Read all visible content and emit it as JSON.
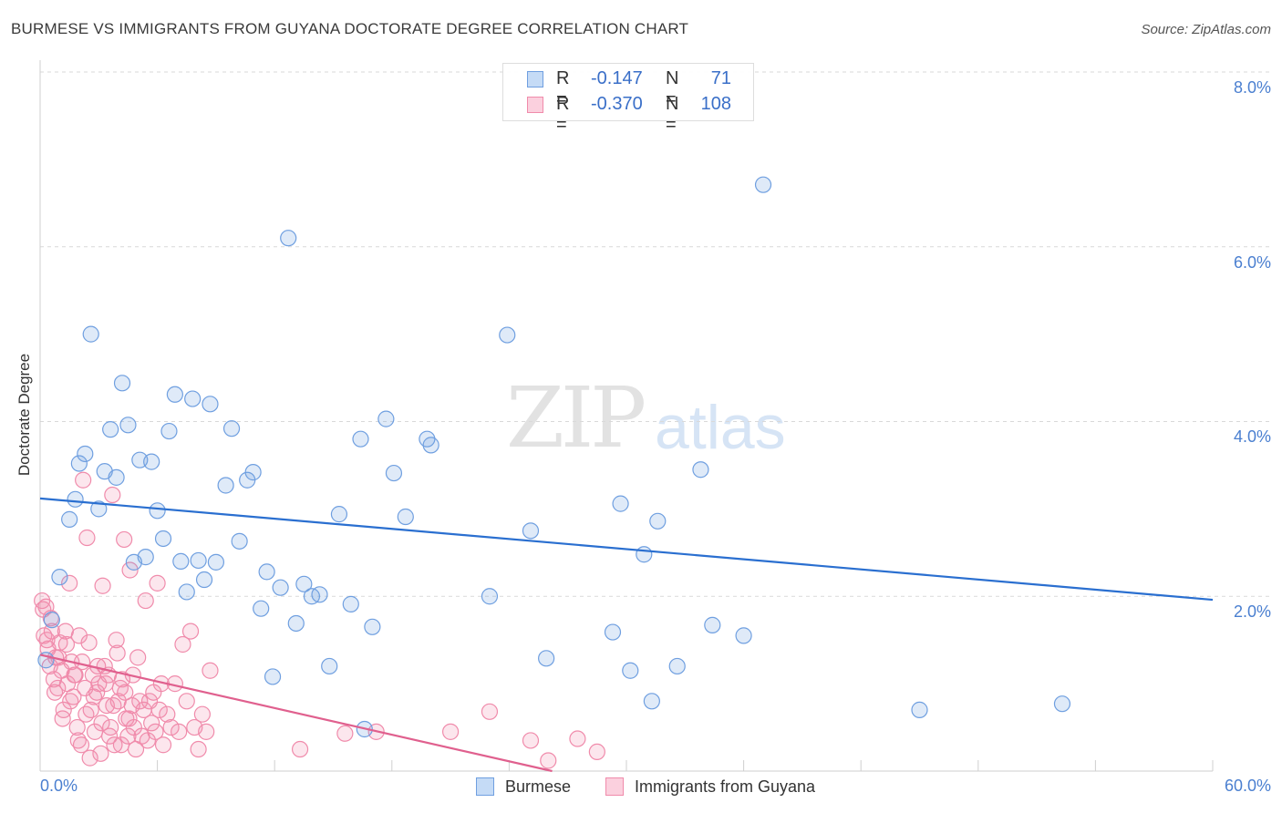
{
  "title": "BURMESE VS IMMIGRANTS FROM GUYANA DOCTORATE DEGREE CORRELATION CHART",
  "source": "Source: ZipAtlas.com",
  "watermark": {
    "zip": "ZIP",
    "atlas": "atlas"
  },
  "colors": {
    "blue": "#6f9fe0",
    "blue_line": "#2a6fd0",
    "pink": "#f08bab",
    "pink_line": "#e0608e",
    "grid": "#d9d9d9",
    "tick_text": "#4a7fd0"
  },
  "stats": {
    "blue": {
      "r_label": "R =",
      "r": "-0.147",
      "n_label": "N =",
      "n": "71"
    },
    "pink": {
      "r_label": "R =",
      "r": "-0.370",
      "n_label": "N =",
      "n": "108"
    }
  },
  "legend": {
    "blue": "Burmese",
    "pink": "Immigrants from Guyana"
  },
  "chart_data": {
    "type": "scatter",
    "title": "BURMESE VS IMMIGRANTS FROM GUYANA DOCTORATE DEGREE CORRELATION CHART",
    "xlabel": "",
    "ylabel": "Doctorate Degree",
    "xlim": [
      0,
      60
    ],
    "ylim": [
      0,
      8
    ],
    "x_tick_labels": [
      "0.0%",
      "60.0%"
    ],
    "y_ticks": [
      2,
      4,
      6,
      8
    ],
    "y_tick_labels": [
      "2.0%",
      "4.0%",
      "6.0%",
      "8.0%"
    ],
    "series": [
      {
        "name": "Burmese",
        "color": "#6f9fe0",
        "trend": {
          "x": [
            0,
            60
          ],
          "y": [
            3.12,
            1.96
          ]
        },
        "points": [
          [
            0.3,
            1.27
          ],
          [
            0.6,
            1.73
          ],
          [
            1.0,
            2.22
          ],
          [
            1.5,
            2.88
          ],
          [
            1.8,
            3.11
          ],
          [
            2.0,
            3.52
          ],
          [
            2.3,
            3.63
          ],
          [
            2.6,
            5.0
          ],
          [
            3.0,
            3.0
          ],
          [
            3.3,
            3.43
          ],
          [
            3.6,
            3.91
          ],
          [
            3.9,
            3.36
          ],
          [
            4.2,
            4.44
          ],
          [
            4.5,
            3.96
          ],
          [
            4.8,
            2.39
          ],
          [
            5.1,
            3.56
          ],
          [
            5.4,
            2.45
          ],
          [
            5.7,
            3.54
          ],
          [
            6.0,
            2.98
          ],
          [
            6.3,
            2.66
          ],
          [
            6.6,
            3.89
          ],
          [
            6.9,
            4.31
          ],
          [
            7.2,
            2.4
          ],
          [
            7.5,
            2.05
          ],
          [
            7.8,
            4.26
          ],
          [
            8.1,
            2.41
          ],
          [
            8.4,
            2.19
          ],
          [
            8.7,
            4.2
          ],
          [
            9.0,
            2.39
          ],
          [
            9.5,
            3.27
          ],
          [
            9.8,
            3.92
          ],
          [
            10.2,
            2.63
          ],
          [
            10.6,
            3.33
          ],
          [
            10.9,
            3.42
          ],
          [
            11.3,
            1.86
          ],
          [
            11.6,
            2.28
          ],
          [
            11.9,
            1.08
          ],
          [
            12.3,
            2.1
          ],
          [
            12.7,
            6.1
          ],
          [
            13.1,
            1.69
          ],
          [
            13.5,
            2.14
          ],
          [
            13.9,
            2.0
          ],
          [
            14.3,
            2.02
          ],
          [
            14.8,
            1.2
          ],
          [
            15.3,
            2.94
          ],
          [
            15.9,
            1.91
          ],
          [
            16.4,
            3.8
          ],
          [
            16.6,
            0.48
          ],
          [
            17.0,
            1.65
          ],
          [
            17.7,
            4.03
          ],
          [
            18.1,
            3.41
          ],
          [
            18.7,
            2.91
          ],
          [
            19.8,
            3.8
          ],
          [
            20.0,
            3.73
          ],
          [
            23.0,
            2.0
          ],
          [
            23.9,
            4.99
          ],
          [
            25.1,
            2.75
          ],
          [
            25.9,
            1.29
          ],
          [
            29.3,
            1.59
          ],
          [
            29.7,
            3.06
          ],
          [
            30.2,
            1.15
          ],
          [
            30.9,
            2.48
          ],
          [
            31.3,
            0.8
          ],
          [
            31.6,
            2.86
          ],
          [
            32.6,
            1.2
          ],
          [
            33.8,
            3.45
          ],
          [
            34.4,
            1.67
          ],
          [
            36.0,
            1.55
          ],
          [
            37.0,
            6.71
          ],
          [
            45.0,
            0.7
          ],
          [
            52.3,
            0.77
          ]
        ]
      },
      {
        "name": "Immigrants from Guyana",
        "color": "#f08bab",
        "trend": {
          "x": [
            0,
            26.2
          ],
          "y": [
            1.33,
            0.0
          ]
        },
        "points": [
          [
            0.1,
            1.95
          ],
          [
            0.2,
            1.55
          ],
          [
            0.3,
            1.88
          ],
          [
            0.4,
            1.4
          ],
          [
            0.5,
            1.2
          ],
          [
            0.6,
            1.6
          ],
          [
            0.7,
            1.05
          ],
          [
            0.8,
            1.3
          ],
          [
            0.9,
            0.95
          ],
          [
            1.0,
            1.47
          ],
          [
            1.1,
            1.15
          ],
          [
            1.2,
            0.7
          ],
          [
            1.3,
            1.6
          ],
          [
            1.4,
            1.0
          ],
          [
            1.5,
            2.15
          ],
          [
            1.6,
            1.25
          ],
          [
            1.7,
            0.85
          ],
          [
            1.8,
            1.1
          ],
          [
            1.9,
            0.5
          ],
          [
            2.0,
            1.55
          ],
          [
            2.1,
            0.3
          ],
          [
            2.2,
            3.33
          ],
          [
            2.3,
            0.95
          ],
          [
            2.4,
            2.67
          ],
          [
            2.5,
            1.47
          ],
          [
            2.6,
            0.7
          ],
          [
            2.7,
            1.1
          ],
          [
            2.8,
            0.45
          ],
          [
            2.9,
            0.9
          ],
          [
            3.0,
            1.0
          ],
          [
            3.1,
            0.2
          ],
          [
            3.2,
            2.12
          ],
          [
            3.3,
            1.2
          ],
          [
            3.4,
            0.75
          ],
          [
            3.5,
            1.1
          ],
          [
            3.6,
            0.5
          ],
          [
            3.7,
            3.16
          ],
          [
            3.8,
            0.3
          ],
          [
            3.9,
            1.5
          ],
          [
            4.0,
            0.8
          ],
          [
            4.1,
            0.95
          ],
          [
            4.2,
            1.05
          ],
          [
            4.3,
            2.65
          ],
          [
            4.4,
            0.6
          ],
          [
            4.5,
            0.4
          ],
          [
            4.6,
            2.3
          ],
          [
            4.7,
            0.75
          ],
          [
            4.8,
            0.5
          ],
          [
            4.9,
            0.25
          ],
          [
            5.0,
            1.3
          ],
          [
            5.1,
            0.8
          ],
          [
            5.2,
            0.4
          ],
          [
            5.3,
            0.7
          ],
          [
            5.4,
            1.95
          ],
          [
            5.5,
            0.35
          ],
          [
            5.6,
            0.8
          ],
          [
            5.7,
            0.55
          ],
          [
            5.8,
            0.9
          ],
          [
            5.9,
            0.45
          ],
          [
            6.0,
            2.15
          ],
          [
            6.1,
            0.7
          ],
          [
            6.2,
            1.0
          ],
          [
            6.3,
            0.3
          ],
          [
            6.5,
            0.65
          ],
          [
            6.7,
            0.5
          ],
          [
            6.9,
            1.0
          ],
          [
            7.1,
            0.45
          ],
          [
            7.3,
            1.45
          ],
          [
            7.5,
            0.8
          ],
          [
            7.7,
            1.6
          ],
          [
            7.9,
            0.5
          ],
          [
            8.1,
            0.25
          ],
          [
            8.3,
            0.65
          ],
          [
            8.5,
            0.45
          ],
          [
            8.7,
            1.15
          ],
          [
            0.15,
            1.85
          ],
          [
            0.35,
            1.5
          ],
          [
            0.55,
            1.75
          ],
          [
            0.75,
            0.9
          ],
          [
            0.95,
            1.3
          ],
          [
            1.15,
            0.6
          ],
          [
            1.35,
            1.45
          ],
          [
            1.55,
            0.8
          ],
          [
            1.75,
            1.1
          ],
          [
            1.95,
            0.35
          ],
          [
            2.15,
            1.25
          ],
          [
            2.35,
            0.65
          ],
          [
            2.55,
            0.15
          ],
          [
            2.75,
            0.85
          ],
          [
            2.95,
            1.2
          ],
          [
            3.15,
            0.55
          ],
          [
            3.35,
            1.0
          ],
          [
            3.55,
            0.4
          ],
          [
            3.75,
            0.75
          ],
          [
            3.95,
            1.35
          ],
          [
            4.15,
            0.3
          ],
          [
            4.35,
            0.9
          ],
          [
            4.55,
            0.6
          ],
          [
            4.75,
            1.1
          ],
          [
            13.3,
            0.25
          ],
          [
            15.6,
            0.43
          ],
          [
            17.2,
            0.45
          ],
          [
            21.0,
            0.45
          ],
          [
            23.0,
            0.68
          ],
          [
            25.1,
            0.35
          ],
          [
            26.0,
            0.12
          ],
          [
            27.5,
            0.37
          ],
          [
            28.5,
            0.22
          ]
        ]
      }
    ]
  }
}
